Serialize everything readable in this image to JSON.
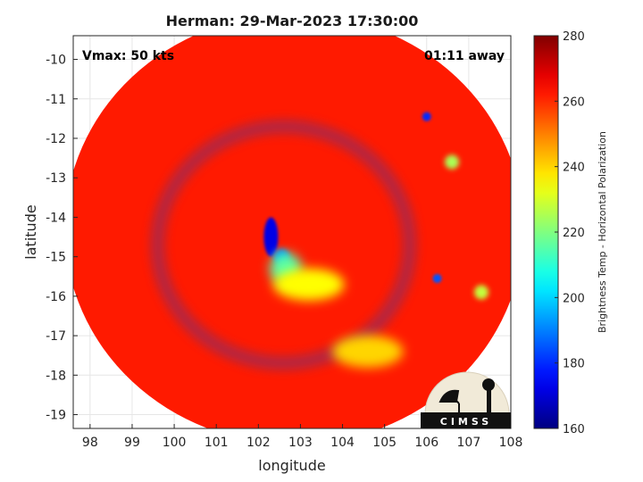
{
  "chart_data": {
    "type": "heatmap",
    "title": "Herman: 29-Mar-2023 17:30:00",
    "xlabel": "longitude",
    "ylabel": "latitude",
    "xlim": [
      97.6,
      108
    ],
    "ylim": [
      -19.35,
      -9.4
    ],
    "y_reversed": true,
    "x_ticks": [
      98,
      99,
      100,
      101,
      102,
      103,
      104,
      105,
      106,
      107,
      108
    ],
    "y_ticks": [
      -10,
      -11,
      -12,
      -13,
      -14,
      -15,
      -16,
      -17,
      -18,
      -19
    ],
    "grid": true,
    "annotations": {
      "vmax": "Vmax: 50 kts",
      "time_offset": "01:11 away"
    },
    "colorbar": {
      "label": "Brightness Temp - Horizontal Polarization",
      "min": 160,
      "max": 280,
      "ticks": [
        160,
        180,
        200,
        220,
        240,
        260,
        280
      ],
      "colormap": "jet"
    },
    "swath": {
      "center_lon": 102.85,
      "center_lat": -14.3,
      "radius_deg": 5.45,
      "background_value": 262
    },
    "features": [
      {
        "name": "eyewall",
        "lon": 102.3,
        "lat": -14.5,
        "value": 172
      },
      {
        "name": "eyewall-south",
        "lon": 102.55,
        "lat": -15.0,
        "value": 190
      },
      {
        "name": "inner-band",
        "lon": 102.65,
        "lat": -15.3,
        "value": 215
      },
      {
        "name": "rainband-south",
        "lon": 103.2,
        "lat": -15.7,
        "value": 235
      },
      {
        "name": "rainband-southeast",
        "lon": 104.6,
        "lat": -17.4,
        "value": 240
      },
      {
        "name": "convection-east",
        "lon": 106.25,
        "lat": -15.55,
        "value": 185
      },
      {
        "name": "convection-northeast",
        "lon": 106.0,
        "lat": -11.45,
        "value": 180
      },
      {
        "name": "edge-band-northeast",
        "lon": 106.6,
        "lat": -12.6,
        "value": 225
      },
      {
        "name": "edge-band-east",
        "lon": 107.3,
        "lat": -15.9,
        "value": 228
      }
    ],
    "logo": {
      "text": "CIMSS"
    }
  }
}
